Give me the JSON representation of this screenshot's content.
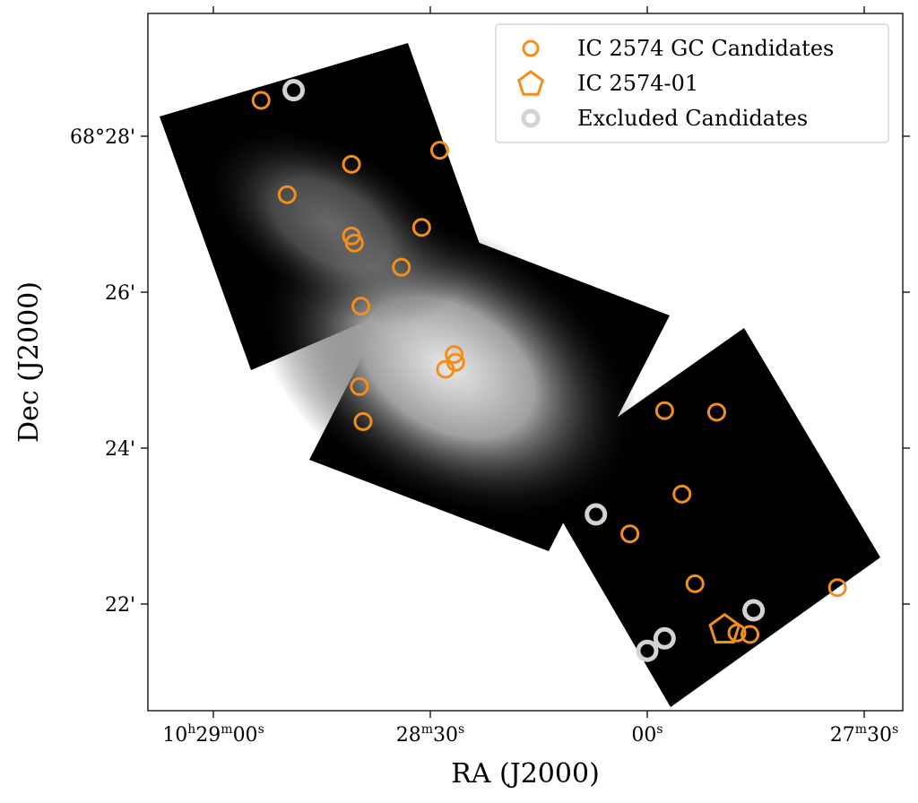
{
  "chart_data": {
    "type": "scatter",
    "background": "grayscale sky image mosaic (three rotated tiles)",
    "xlabel": "RA (J2000)",
    "ylabel": "Dec (J2000)",
    "x_units": "RA seconds relative to 10h28m00s",
    "y_units": "Dec arcmin relative to 68°00'",
    "xlim": [
      58,
      -36
    ],
    "ylim": [
      20.45,
      29.4
    ],
    "x_ticks": [
      {
        "value": 60,
        "label": "10h29m00s",
        "parts": [
          "10",
          "h",
          "29",
          "m",
          "00",
          "s"
        ]
      },
      {
        "value": 30,
        "label": "28m30s",
        "parts": [
          "28",
          "m",
          "30",
          "s"
        ]
      },
      {
        "value": 0,
        "label": "00s",
        "parts": [
          "00",
          "s"
        ]
      },
      {
        "value": -30,
        "label": "27m30s",
        "parts": [
          "27",
          "m",
          "30",
          "s"
        ]
      }
    ],
    "y_ticks": [
      {
        "value": 28,
        "label": "68°28'"
      },
      {
        "value": 26,
        "label": "26'"
      },
      {
        "value": 24,
        "label": "24'"
      },
      {
        "value": 22,
        "label": "22'"
      }
    ],
    "legend": {
      "placement": "top-right",
      "entries": [
        {
          "label": "IC 2574 GC Candidates",
          "marker": "circle",
          "color": "#f28e1c"
        },
        {
          "label": "IC 2574-01",
          "marker": "pentagon",
          "color": "#f28e1c"
        },
        {
          "label": "Excluded Candidates",
          "marker": "circle-thick",
          "color": "#d3d3d3"
        }
      ]
    },
    "series": [
      {
        "name": "IC 2574 GC Candidates",
        "color": "#f28e1c",
        "marker": "circle",
        "points": [
          [
            53.4,
            28.46
          ],
          [
            40.9,
            27.64
          ],
          [
            28.7,
            27.82
          ],
          [
            49.8,
            27.25
          ],
          [
            31.2,
            26.83
          ],
          [
            40.9,
            26.72
          ],
          [
            40.5,
            26.63
          ],
          [
            34.0,
            26.32
          ],
          [
            39.6,
            25.82
          ],
          [
            26.7,
            25.2
          ],
          [
            26.5,
            25.1
          ],
          [
            27.9,
            25.01
          ],
          [
            39.8,
            24.79
          ],
          [
            39.3,
            24.34
          ],
          [
            -2.4,
            24.48
          ],
          [
            -9.6,
            24.46
          ],
          [
            -4.8,
            23.41
          ],
          [
            2.4,
            22.9
          ],
          [
            -6.6,
            22.26
          ],
          [
            -26.3,
            22.21
          ],
          [
            -12.4,
            21.63
          ],
          [
            -14.2,
            21.61
          ]
        ]
      },
      {
        "name": "IC 2574-01",
        "color": "#f28e1c",
        "marker": "pentagon",
        "points": [
          [
            -10.7,
            21.67
          ]
        ]
      },
      {
        "name": "Excluded Candidates",
        "color": "#d3d3d3",
        "marker": "circle-thick",
        "points": [
          [
            48.9,
            28.59
          ],
          [
            7.1,
            23.15
          ],
          [
            -2.4,
            21.56
          ],
          [
            0,
            21.4
          ],
          [
            -14.7,
            21.92
          ]
        ]
      }
    ]
  }
}
